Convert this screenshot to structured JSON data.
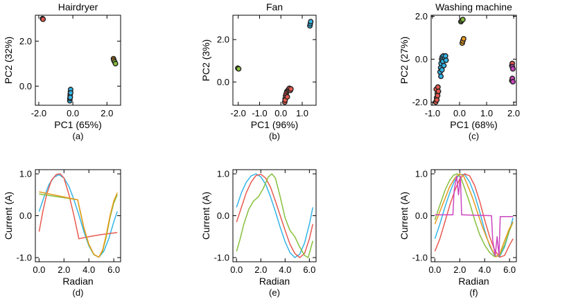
{
  "colors": {
    "red": "#e8594f",
    "blue": "#33b5e8",
    "orange": "#e89a1e",
    "green": "#86bf3b",
    "magenta": "#cc44c0",
    "axis": "#000000"
  },
  "chart_data": [
    {
      "type": "scatter",
      "title": "Hairdryer",
      "xlabel": "PC1 (65%)",
      "ylabel": "PC2 (32%)",
      "caption": "(a)",
      "xlim": [
        -2.2,
        2.8
      ],
      "ylim": [
        -0.85,
        3.15
      ],
      "xticks": [
        -2.0,
        0.0,
        2.0
      ],
      "xtick_labels": [
        "-2.0",
        "0.0",
        "2.0"
      ],
      "yticks": [
        0.0,
        2.0
      ],
      "ytick_labels": [
        "0.0",
        "2.0"
      ],
      "series": [
        {
          "color": "red",
          "points": [
            [
              -1.78,
              3.0
            ],
            [
              -1.75,
              2.97
            ]
          ]
        },
        {
          "color": "blue",
          "points": [
            [
              -0.18,
              -0.65
            ],
            [
              -0.17,
              -0.55
            ],
            [
              -0.16,
              -0.45
            ],
            [
              -0.15,
              -0.35
            ],
            [
              -0.14,
              -0.25
            ],
            [
              -0.13,
              -0.15
            ],
            [
              -0.15,
              -0.5
            ],
            [
              -0.13,
              -0.3
            ]
          ]
        },
        {
          "color": "orange",
          "points": [
            [
              2.38,
              1.22
            ],
            [
              2.4,
              1.15
            ]
          ]
        },
        {
          "color": "green",
          "points": [
            [
              2.45,
              1.08
            ],
            [
              2.5,
              1.0
            ]
          ]
        }
      ]
    },
    {
      "type": "scatter",
      "title": "Fan",
      "xlabel": "PC1 (96%)",
      "ylabel": "PC2 (3%)",
      "caption": "(b)",
      "xlim": [
        -2.25,
        1.65
      ],
      "ylim": [
        -1.1,
        3.15
      ],
      "xticks": [
        -2.0,
        -1.0,
        0.0,
        1.0
      ],
      "xtick_labels": [
        "-2.0",
        "-1.0",
        "0.0",
        "1.0"
      ],
      "yticks": [
        0.0,
        2.0
      ],
      "ytick_labels": [
        "0.0",
        "2.0"
      ],
      "series": [
        {
          "color": "green",
          "points": [
            [
              -2.02,
              0.65
            ],
            [
              -1.98,
              0.62
            ]
          ]
        },
        {
          "color": "red",
          "points": [
            [
              0.18,
              -0.95
            ],
            [
              0.2,
              -0.8
            ],
            [
              0.22,
              -0.65
            ],
            [
              0.25,
              -0.55
            ],
            [
              0.28,
              -0.45
            ],
            [
              0.2,
              -0.85
            ],
            [
              0.3,
              -0.7
            ],
            [
              0.33,
              -0.4
            ],
            [
              0.36,
              -0.35
            ],
            [
              0.4,
              -0.3
            ],
            [
              0.44,
              -0.4
            ],
            [
              0.47,
              -0.33
            ]
          ]
        },
        {
          "color": "blue",
          "points": [
            [
              1.36,
              2.65
            ],
            [
              1.38,
              2.75
            ],
            [
              1.4,
              2.85
            ]
          ]
        }
      ]
    },
    {
      "type": "scatter",
      "title": "Washing machine",
      "xlabel": "PC1 (68%)",
      "ylabel": "PC2 (27%)",
      "caption": "(c)",
      "xlim": [
        -1.05,
        2.1
      ],
      "ylim": [
        -2.15,
        2.05
      ],
      "xticks": [
        -1.0,
        0.0,
        1.0,
        2.0
      ],
      "xtick_labels": [
        "-1.0",
        "0.0",
        "1.0",
        "2.0"
      ],
      "yticks": [
        -2.0,
        0.0,
        2.0
      ],
      "ytick_labels": [
        "-2.0",
        "0.0",
        "2.0"
      ],
      "series": [
        {
          "color": "red",
          "points": [
            [
              -0.88,
              -2.0
            ],
            [
              -0.85,
              -1.8
            ],
            [
              -0.82,
              -1.6
            ],
            [
              -0.86,
              -1.4
            ],
            [
              -0.8,
              -1.3
            ],
            [
              -0.78,
              -1.5
            ],
            [
              -0.84,
              -1.9
            ],
            [
              -0.81,
              -1.7
            ]
          ]
        },
        {
          "color": "blue",
          "points": [
            [
              -0.72,
              -0.6
            ],
            [
              -0.7,
              -0.4
            ],
            [
              -0.68,
              -0.2
            ],
            [
              -0.66,
              0.0
            ],
            [
              -0.64,
              0.1
            ],
            [
              -0.62,
              -0.1
            ],
            [
              -0.6,
              0.15
            ],
            [
              -0.58,
              -0.3
            ],
            [
              -0.55,
              0.05
            ],
            [
              -0.52,
              0.15
            ],
            [
              -0.5,
              -0.05
            ],
            [
              -0.65,
              -0.5
            ],
            [
              -0.69,
              -0.8
            ]
          ]
        },
        {
          "color": "green",
          "points": [
            [
              0.05,
              1.75
            ],
            [
              0.08,
              1.8
            ],
            [
              0.12,
              1.85
            ]
          ]
        },
        {
          "color": "orange",
          "points": [
            [
              0.1,
              0.75
            ],
            [
              0.12,
              0.85
            ],
            [
              0.15,
              0.95
            ]
          ]
        },
        {
          "color": "red",
          "points": [
            [
              1.93,
              -0.3
            ],
            [
              1.95,
              -0.2
            ]
          ]
        },
        {
          "color": "magenta",
          "points": [
            [
              1.95,
              -0.35
            ],
            [
              1.97,
              -0.45
            ]
          ]
        },
        {
          "color": "magenta",
          "points": [
            [
              1.93,
              -1.0
            ],
            [
              1.95,
              -0.9
            ],
            [
              1.97,
              -1.05
            ]
          ]
        }
      ]
    },
    {
      "type": "line",
      "xlabel": "Radian",
      "ylabel": "Current (A)",
      "caption": "(d)",
      "xlim": [
        -0.3,
        6.55
      ],
      "ylim": [
        -1.1,
        1.1
      ],
      "xticks": [
        0.0,
        2.0,
        4.0,
        6.0
      ],
      "xtick_labels": [
        "0.0",
        "2.0",
        "4.0",
        "6.0"
      ],
      "yticks": [
        -1.0,
        0.0,
        1.0
      ],
      "ytick_labels": [
        "-1.0",
        "0.0",
        "1.0"
      ],
      "series": [
        {
          "color": "blue",
          "x": [
            0.0,
            0.4,
            0.8,
            1.2,
            1.6,
            2.0,
            2.4,
            2.8,
            3.2,
            3.6,
            4.0,
            4.4,
            4.8,
            5.2,
            5.6,
            6.0,
            6.28
          ],
          "y": [
            0.1,
            0.45,
            0.75,
            0.92,
            0.98,
            0.9,
            0.7,
            0.38,
            0.02,
            -0.38,
            -0.72,
            -0.93,
            -0.99,
            -0.85,
            -0.55,
            -0.15,
            0.1
          ]
        },
        {
          "color": "red",
          "x": [
            0.0,
            0.3,
            0.6,
            1.0,
            1.4,
            1.7,
            2.0,
            2.4,
            2.8,
            3.2,
            4.0,
            5.0,
            6.28
          ],
          "y": [
            -0.38,
            0.1,
            0.5,
            0.85,
            0.99,
            1.0,
            0.9,
            0.5,
            0.0,
            -0.55,
            -0.5,
            -0.45,
            -0.4
          ]
        },
        {
          "color": "green",
          "x": [
            0.0,
            3.1,
            3.3,
            3.6,
            4.0,
            4.4,
            4.8,
            5.1,
            5.4,
            5.7,
            6.0,
            6.28
          ],
          "y": [
            0.52,
            0.38,
            0.1,
            -0.3,
            -0.7,
            -0.93,
            -0.99,
            -0.85,
            -0.5,
            -0.05,
            0.3,
            0.5
          ]
        },
        {
          "color": "orange",
          "x": [
            0.0,
            3.1,
            3.3,
            3.6,
            4.0,
            4.4,
            4.8,
            5.1,
            5.4,
            5.7,
            6.0,
            6.28
          ],
          "y": [
            0.57,
            0.38,
            0.12,
            -0.28,
            -0.68,
            -0.92,
            -0.99,
            -0.82,
            -0.45,
            0.0,
            0.35,
            0.55
          ]
        }
      ]
    },
    {
      "type": "line",
      "xlabel": "Radian",
      "ylabel": "Current (A)",
      "caption": "(e)",
      "xlim": [
        -0.3,
        6.55
      ],
      "ylim": [
        -1.1,
        1.1
      ],
      "xticks": [
        0.0,
        2.0,
        4.0,
        6.0
      ],
      "xtick_labels": [
        "0.0",
        "2.0",
        "4.0",
        "6.0"
      ],
      "yticks": [
        -1.0,
        0.0,
        1.0
      ],
      "ytick_labels": [
        "-1.0",
        "0.0",
        "1.0"
      ],
      "series": [
        {
          "color": "blue",
          "x": [
            0.0,
            0.4,
            0.8,
            1.2,
            1.6,
            2.0,
            2.4,
            2.8,
            3.2,
            3.6,
            4.0,
            4.4,
            4.8,
            5.2,
            5.6,
            6.0,
            6.28
          ],
          "y": [
            0.2,
            0.55,
            0.8,
            0.95,
            1.0,
            0.93,
            0.75,
            0.45,
            0.1,
            -0.28,
            -0.62,
            -0.88,
            -1.0,
            -0.92,
            -0.65,
            -0.2,
            0.2
          ]
        },
        {
          "color": "red",
          "x": [
            0.0,
            0.4,
            0.8,
            1.2,
            1.6,
            2.0,
            2.4,
            2.8,
            3.2,
            3.6,
            4.0,
            4.4,
            4.8,
            5.2,
            5.6,
            6.0,
            6.28
          ],
          "y": [
            -0.15,
            0.2,
            0.55,
            0.8,
            0.96,
            0.99,
            0.9,
            0.68,
            0.35,
            0.0,
            -0.35,
            -0.68,
            -0.9,
            -1.0,
            -0.9,
            -0.55,
            -0.2
          ]
        },
        {
          "color": "green",
          "x": [
            0.0,
            0.3,
            0.6,
            1.0,
            1.4,
            1.8,
            2.2,
            2.6,
            2.9,
            3.2,
            3.6,
            4.0,
            4.4,
            4.8,
            5.2,
            5.6,
            5.9,
            6.28
          ],
          "y": [
            -0.85,
            -0.55,
            -0.2,
            0.15,
            0.35,
            0.45,
            0.65,
            0.92,
            1.0,
            0.9,
            0.45,
            -0.05,
            -0.35,
            -0.5,
            -0.75,
            -0.95,
            -1.0,
            -0.6
          ]
        }
      ]
    },
    {
      "type": "line",
      "xlabel": "Radian",
      "ylabel": "Current (A)",
      "caption": "(f)",
      "xlim": [
        -0.3,
        6.55
      ],
      "ylim": [
        -1.1,
        1.1
      ],
      "xticks": [
        0.0,
        2.0,
        4.0,
        6.0
      ],
      "xtick_labels": [
        "0.0",
        "2.0",
        "4.0",
        "6.0"
      ],
      "yticks": [
        -1.0,
        0.0,
        1.0
      ],
      "ytick_labels": [
        "-1.0",
        "0.0",
        "1.0"
      ],
      "series": [
        {
          "color": "blue",
          "x": [
            0.0,
            0.4,
            0.8,
            1.2,
            1.6,
            2.0,
            2.4,
            2.8,
            3.2,
            3.6,
            4.0,
            4.4,
            4.8,
            5.2,
            5.6,
            6.0,
            6.28
          ],
          "y": [
            -0.55,
            -0.2,
            0.2,
            0.55,
            0.85,
            0.99,
            0.98,
            0.8,
            0.5,
            0.1,
            -0.35,
            -0.72,
            -0.95,
            -0.98,
            -0.75,
            -0.35,
            -0.05
          ]
        },
        {
          "color": "red",
          "x": [
            0.0,
            0.4,
            0.8,
            1.2,
            1.6,
            2.0,
            2.4,
            2.8,
            3.2,
            3.6,
            4.0,
            4.4,
            4.8,
            5.2,
            5.6,
            6.0,
            6.28
          ],
          "y": [
            -0.85,
            -0.55,
            -0.15,
            0.25,
            0.6,
            0.88,
            1.0,
            0.95,
            0.72,
            0.35,
            -0.1,
            -0.5,
            -0.82,
            -0.99,
            -0.95,
            -0.7,
            -0.55
          ]
        },
        {
          "color": "green",
          "x": [
            0.0,
            0.4,
            0.8,
            1.2,
            1.5,
            1.8,
            2.1,
            2.4,
            2.8,
            3.2,
            3.6,
            4.0,
            4.4,
            4.8,
            5.2,
            5.6,
            6.0,
            6.28
          ],
          "y": [
            -0.1,
            0.25,
            0.6,
            0.85,
            0.97,
            1.0,
            0.9,
            0.65,
            0.3,
            -0.1,
            -0.45,
            -0.7,
            -0.88,
            -0.98,
            -0.95,
            -0.7,
            -0.35,
            -0.15
          ]
        },
        {
          "color": "orange",
          "x": [
            0.0,
            0.4,
            0.8,
            1.2,
            1.6,
            2.0,
            2.3,
            2.6,
            3.0,
            3.4,
            3.8,
            4.2,
            4.6,
            4.9,
            5.2,
            5.6,
            6.0,
            6.28
          ],
          "y": [
            -0.2,
            0.1,
            0.4,
            0.7,
            0.9,
            1.0,
            0.95,
            0.75,
            0.45,
            0.1,
            -0.25,
            -0.55,
            -0.82,
            -0.98,
            -0.92,
            -0.6,
            -0.3,
            -0.15
          ]
        },
        {
          "color": "magenta",
          "x": [
            0.0,
            1.45,
            1.55,
            1.75,
            1.9,
            2.05,
            2.15,
            4.55,
            4.65,
            4.85,
            5.0,
            5.15,
            5.25,
            6.28
          ],
          "y": [
            0.02,
            0.02,
            0.6,
            0.95,
            0.5,
            0.95,
            0.02,
            0.0,
            -0.6,
            -0.95,
            -0.5,
            -0.95,
            -0.02,
            -0.02
          ]
        }
      ]
    }
  ]
}
